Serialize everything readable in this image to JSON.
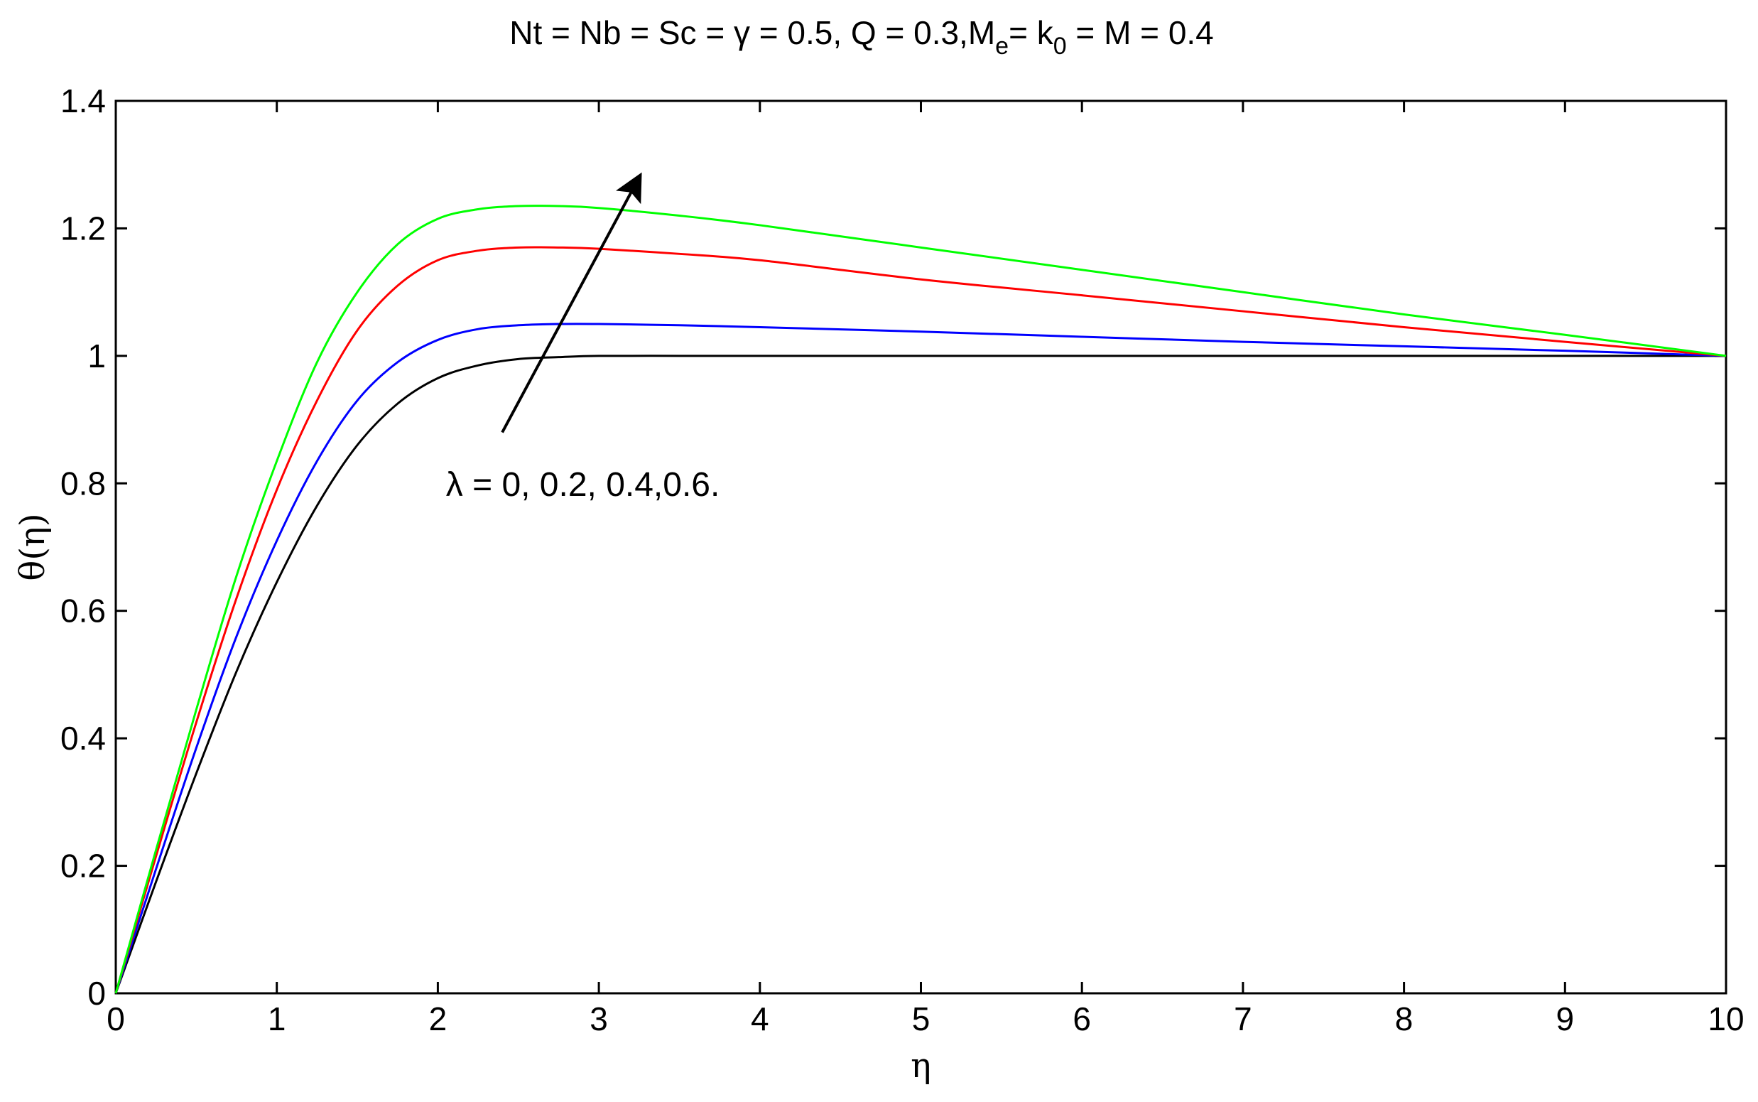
{
  "chart_data": {
    "type": "line",
    "title": {
      "part1": "Nt = Nb = Sc = γ = 0.5, Q = 0.3,M",
      "sub1": "e",
      "part2": "= k",
      "sub2": "0",
      "part3": " = M = 0.4"
    },
    "xlabel": "η",
    "ylabel": "θ(η)",
    "xlim": [
      0,
      10
    ],
    "ylim": [
      0,
      1.4
    ],
    "xticks": [
      0,
      1,
      2,
      3,
      4,
      5,
      6,
      7,
      8,
      9,
      10
    ],
    "yticks": [
      0,
      0.2,
      0.4,
      0.6,
      0.8,
      1,
      1.2,
      1.4
    ],
    "xtick_labels": [
      "0",
      "1",
      "2",
      "3",
      "4",
      "5",
      "6",
      "7",
      "8",
      "9",
      "10"
    ],
    "ytick_labels": [
      "0",
      "0.2",
      "0.4",
      "0.6",
      "0.8",
      "1",
      "1.2",
      "1.4"
    ],
    "grid": false,
    "annotation": {
      "text": "λ = 0, 0.2, 0.4,0.6.",
      "arrow_from": [
        2.4,
        0.88
      ],
      "arrow_to": [
        3.25,
        1.28
      ],
      "text_anchor": [
        2.05,
        0.78
      ]
    },
    "x": [
      0,
      0.25,
      0.5,
      0.75,
      1,
      1.25,
      1.5,
      1.75,
      2,
      2.25,
      2.5,
      2.75,
      3,
      3.5,
      4,
      5,
      6,
      7,
      8,
      9,
      10
    ],
    "series": [
      {
        "color": "#000000",
        "values": [
          0,
          0.175,
          0.345,
          0.505,
          0.645,
          0.765,
          0.86,
          0.925,
          0.965,
          0.985,
          0.995,
          0.998,
          1.0,
          1.0,
          1.0,
          1.0,
          1.0,
          1.0,
          1.0,
          1.0,
          1.0
        ]
      },
      {
        "color": "#0000ff",
        "values": [
          0,
          0.195,
          0.385,
          0.56,
          0.71,
          0.835,
          0.93,
          0.99,
          1.025,
          1.042,
          1.048,
          1.05,
          1.05,
          1.048,
          1.045,
          1.038,
          1.03,
          1.022,
          1.015,
          1.008,
          1.0
        ]
      },
      {
        "color": "#ff0000",
        "values": [
          0,
          0.215,
          0.425,
          0.62,
          0.79,
          0.93,
          1.04,
          1.11,
          1.15,
          1.165,
          1.17,
          1.17,
          1.168,
          1.16,
          1.15,
          1.12,
          1.095,
          1.07,
          1.045,
          1.022,
          1.0
        ]
      },
      {
        "color": "#00ff00",
        "values": [
          0,
          0.225,
          0.445,
          0.655,
          0.835,
          0.99,
          1.1,
          1.175,
          1.215,
          1.23,
          1.235,
          1.235,
          1.232,
          1.22,
          1.205,
          1.17,
          1.135,
          1.1,
          1.065,
          1.033,
          1.0
        ]
      }
    ]
  }
}
